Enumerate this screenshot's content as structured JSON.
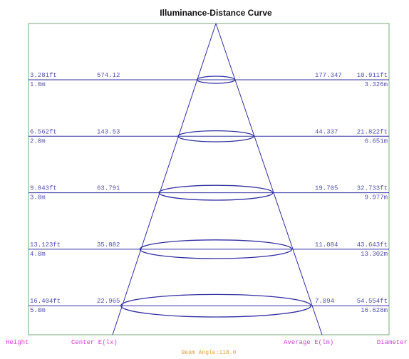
{
  "title": "Illuminance-Distance Curve",
  "rows": [
    {
      "height_ft": "3.281ft",
      "height_m": "1.0m",
      "center_e": "574.12",
      "average_e": "177.347",
      "diameter_ft": "10.911ft",
      "diameter_m": "3.326m"
    },
    {
      "height_ft": "6.562ft",
      "height_m": "2.0m",
      "center_e": "143.53",
      "average_e": "44.337",
      "diameter_ft": "21.822ft",
      "diameter_m": "6.651m"
    },
    {
      "height_ft": "9.843ft",
      "height_m": "3.0m",
      "center_e": "63.791",
      "average_e": "19.705",
      "diameter_ft": "32.733ft",
      "diameter_m": "9.977m"
    },
    {
      "height_ft": "13.123ft",
      "height_m": "4.0m",
      "center_e": "35.882",
      "average_e": "11.084",
      "diameter_ft": "43.643ft",
      "diameter_m": "13.302m"
    },
    {
      "height_ft": "16.404ft",
      "height_m": "5.0m",
      "center_e": "22.965",
      "average_e": "7.094",
      "diameter_ft": "54.554ft",
      "diameter_m": "16.628m"
    }
  ],
  "labels": {
    "height": "Height",
    "center": "Center E(lx)",
    "average": "Average E(lm)",
    "diameter": "Diameter"
  },
  "beam_angle": "Beam Angle:118.0"
}
